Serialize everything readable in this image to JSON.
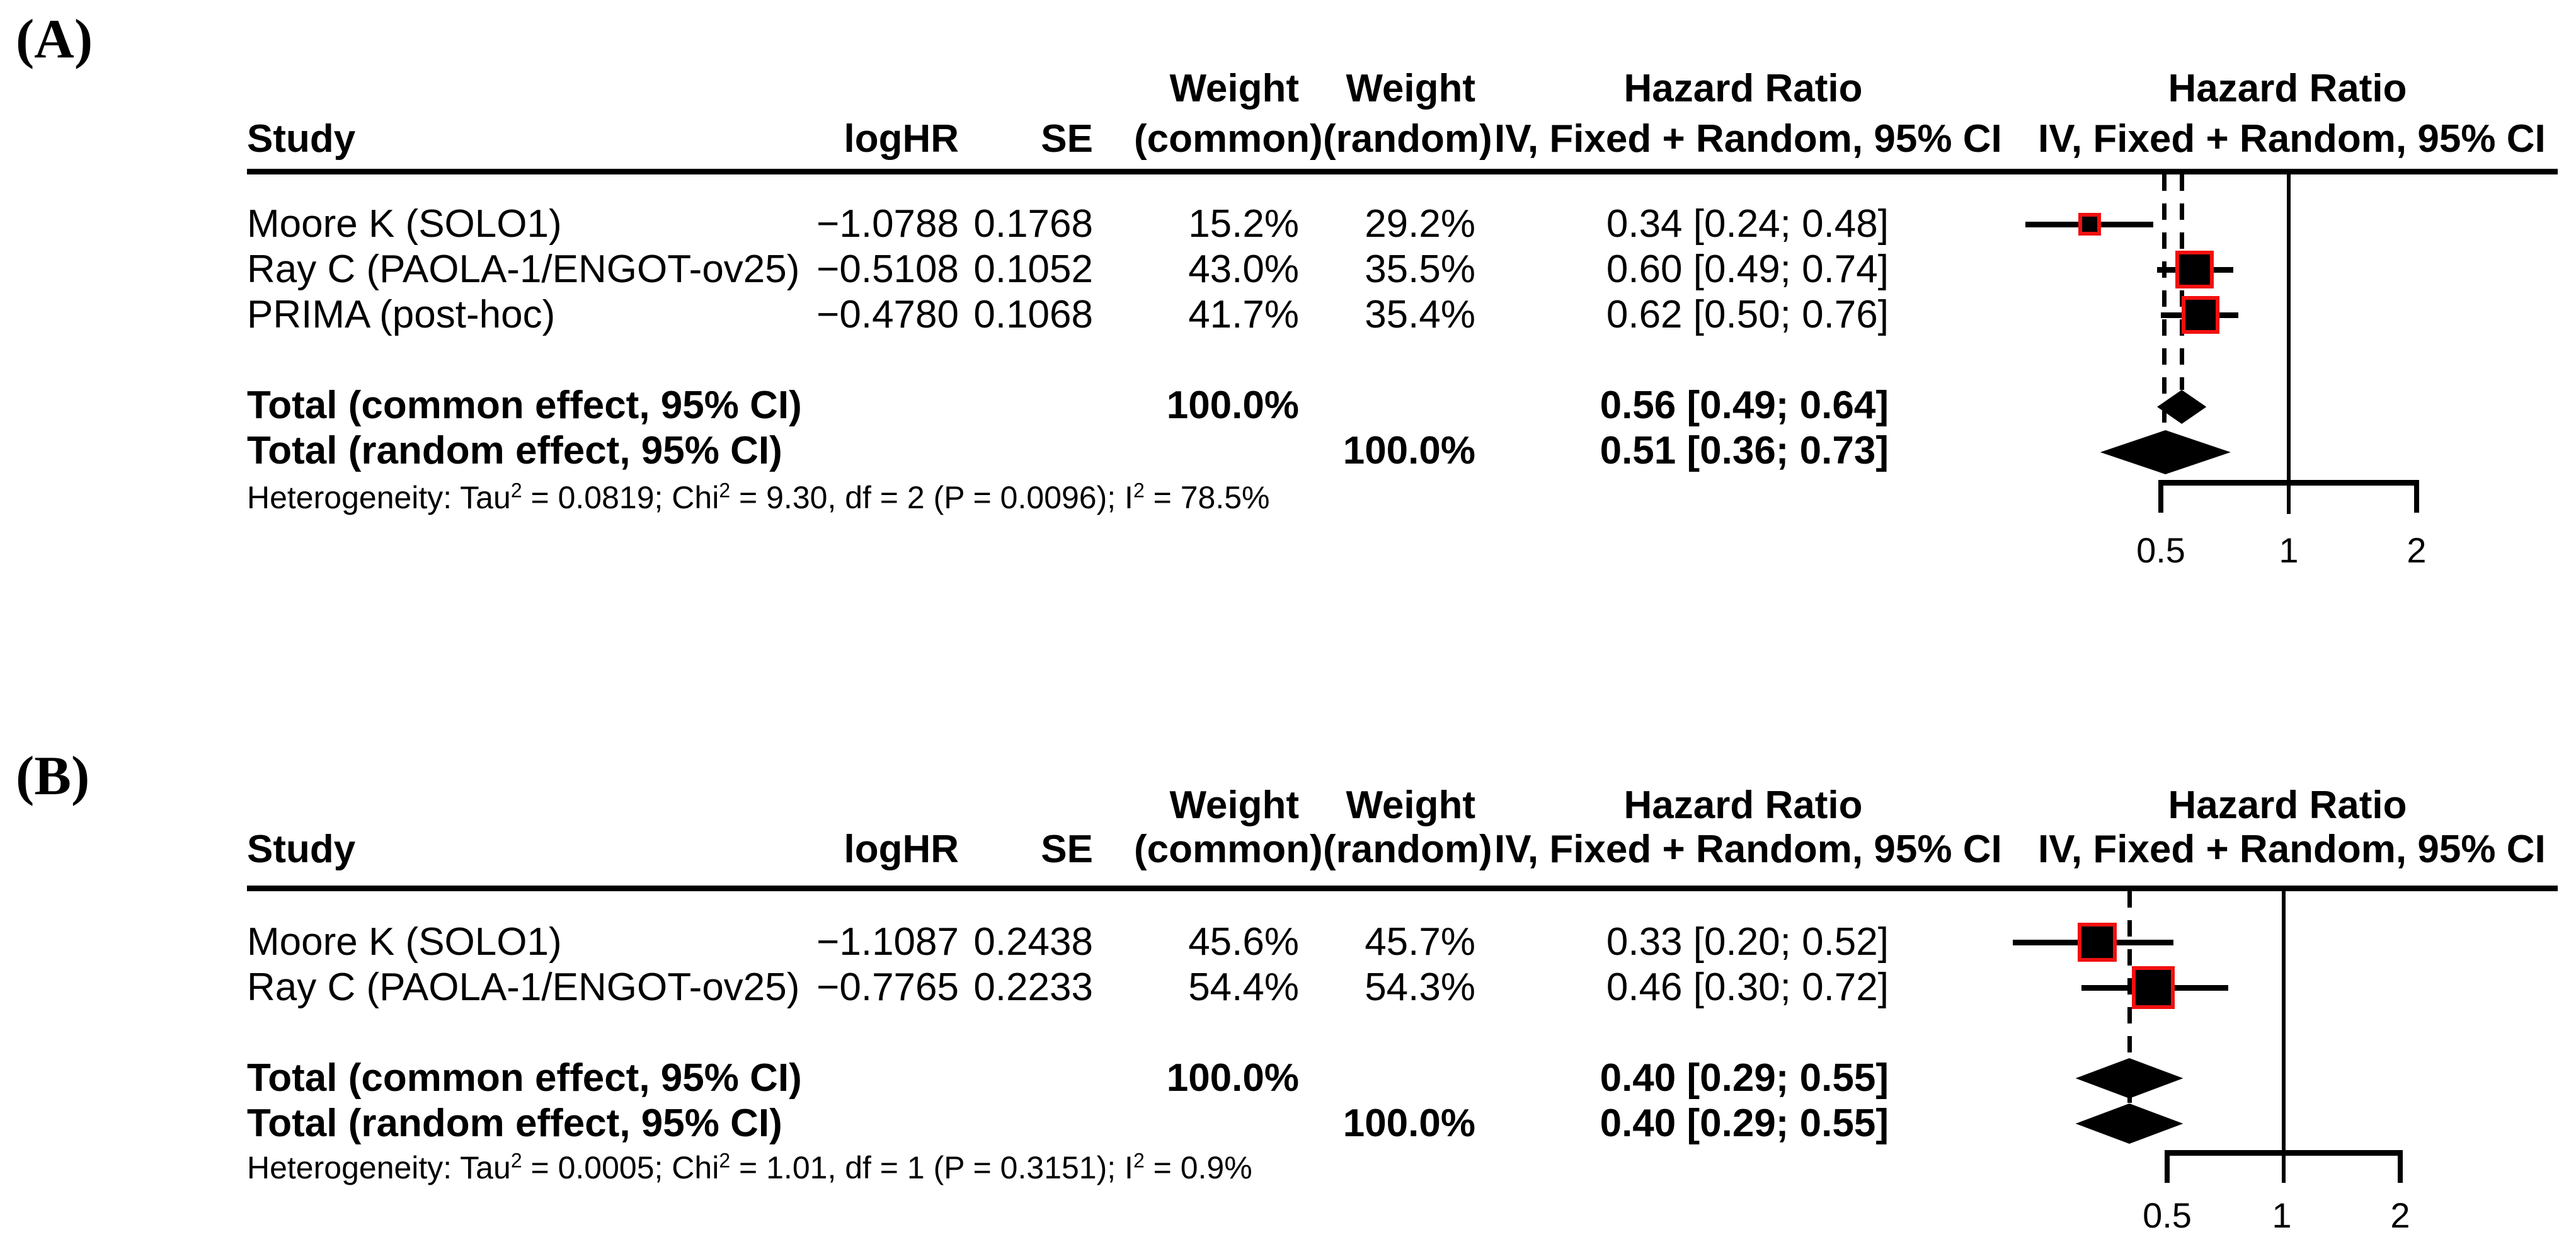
{
  "colors": {
    "background": "#ffffff",
    "text": "#000000",
    "marker_fill": "#000000",
    "marker_border": "#f21010"
  },
  "figure": {
    "panels": [
      {
        "label": "(A)",
        "header": {
          "study": "Study",
          "loghr": "logHR",
          "se": "SE",
          "weight_title": "Weight",
          "weight_common": "(common)",
          "weight_random": "(random)",
          "hr_title": "Hazard Ratio",
          "hr_subtitle": "IV, Fixed + Random, 95% CI"
        },
        "rows": [
          {
            "study": "Moore K (SOLO1)",
            "loghr": "−1.0788",
            "se": "0.1768",
            "w_common": "15.2%",
            "w_random": "29.2%",
            "hr_text": "0.34 [0.24; 0.48]"
          },
          {
            "study": "Ray C (PAOLA-1/ENGOT-ov25)",
            "loghr": "−0.5108",
            "se": "0.1052",
            "w_common": "43.0%",
            "w_random": "35.5%",
            "hr_text": "0.60 [0.49; 0.74]"
          },
          {
            "study": "PRIMA (post-hoc)",
            "loghr": "−0.4780",
            "se": "0.1068",
            "w_common": "41.7%",
            "w_random": "35.4%",
            "hr_text": "0.62 [0.50; 0.76]"
          }
        ],
        "totals": [
          {
            "label": "Total (common effect, 95% CI)",
            "w_common": "100.0%",
            "w_random": "",
            "hr_text": "0.56 [0.49; 0.64]"
          },
          {
            "label": "Total (random effect, 95% CI)",
            "w_common": "",
            "w_random": "100.0%",
            "hr_text": "0.51 [0.36; 0.73]"
          }
        ],
        "heterogeneity_segments": [
          {
            "t": "Heterogeneity: Tau"
          },
          {
            "sup": "2"
          },
          {
            "t": " = 0.0819; Chi"
          },
          {
            "sup": "2"
          },
          {
            "t": " = 9.30, df = 2 (P = 0.0096); I"
          },
          {
            "sup": "2"
          },
          {
            "t": " = 78.5%"
          }
        ],
        "axis_ticks": [
          "0.5",
          "1",
          "2"
        ],
        "forest": {
          "studies": [
            {
              "hr": 0.34,
              "lo": 0.24,
              "hi": 0.48,
              "weight": 15.2
            },
            {
              "hr": 0.6,
              "lo": 0.49,
              "hi": 0.74,
              "weight": 43.0
            },
            {
              "hr": 0.62,
              "lo": 0.5,
              "hi": 0.76,
              "weight": 41.7
            }
          ],
          "pooled_common": {
            "hr": 0.56,
            "lo": 0.49,
            "hi": 0.64
          },
          "pooled_random": {
            "hr": 0.51,
            "lo": 0.36,
            "hi": 0.73
          }
        }
      },
      {
        "label": "(B)",
        "header": {
          "study": "Study",
          "loghr": "logHR",
          "se": "SE",
          "weight_title": "Weight",
          "weight_common": "(common)",
          "weight_random": "(random)",
          "hr_title": "Hazard Ratio",
          "hr_subtitle": "IV, Fixed + Random, 95% CI"
        },
        "rows": [
          {
            "study": "Moore K (SOLO1)",
            "loghr": "−1.1087",
            "se": "0.2438",
            "w_common": "45.6%",
            "w_random": "45.7%",
            "hr_text": "0.33 [0.20; 0.52]"
          },
          {
            "study": "Ray C (PAOLA-1/ENGOT-ov25)",
            "loghr": "−0.7765",
            "se": "0.2233",
            "w_common": "54.4%",
            "w_random": "54.3%",
            "hr_text": "0.46 [0.30; 0.72]"
          }
        ],
        "totals": [
          {
            "label": "Total (common effect, 95% CI)",
            "w_common": "100.0%",
            "w_random": "",
            "hr_text": "0.40 [0.29; 0.55]"
          },
          {
            "label": "Total (random effect, 95% CI)",
            "w_common": "",
            "w_random": "100.0%",
            "hr_text": "0.40 [0.29; 0.55]"
          }
        ],
        "heterogeneity_segments": [
          {
            "t": "Heterogeneity: Tau"
          },
          {
            "sup": "2"
          },
          {
            "t": " = 0.0005; Chi"
          },
          {
            "sup": "2"
          },
          {
            "t": " = 1.01, df = 1 (P = 0.3151); I"
          },
          {
            "sup": "2"
          },
          {
            "t": " = 0.9%"
          }
        ],
        "axis_ticks": [
          "0.5",
          "1",
          "2"
        ],
        "forest": {
          "studies": [
            {
              "hr": 0.33,
              "lo": 0.2,
              "hi": 0.52,
              "weight": 45.6
            },
            {
              "hr": 0.46,
              "lo": 0.3,
              "hi": 0.72,
              "weight": 54.4
            }
          ],
          "pooled_common": {
            "hr": 0.4,
            "lo": 0.29,
            "hi": 0.55
          },
          "pooled_random": {
            "hr": 0.4,
            "lo": 0.29,
            "hi": 0.55
          }
        }
      }
    ]
  },
  "chart_data": [
    {
      "type": "table",
      "title": "(A)",
      "columns": [
        "Study",
        "logHR",
        "SE",
        "Weight (common)",
        "Weight (random)",
        "Hazard Ratio IV, Fixed + Random, 95% CI"
      ],
      "rows": [
        [
          "Moore K (SOLO1)",
          -1.0788,
          0.1768,
          "15.2%",
          "29.2%",
          "0.34 [0.24; 0.48]"
        ],
        [
          "Ray C (PAOLA-1/ENGOT-ov25)",
          -0.5108,
          0.1052,
          "43.0%",
          "35.5%",
          "0.60 [0.49; 0.74]"
        ],
        [
          "PRIMA (post-hoc)",
          -0.478,
          0.1068,
          "41.7%",
          "35.4%",
          "0.62 [0.50; 0.76]"
        ]
      ],
      "points": [
        {
          "study": "Moore K (SOLO1)",
          "hr": 0.34,
          "ci": [
            0.24,
            0.48
          ]
        },
        {
          "study": "Ray C (PAOLA-1/ENGOT-ov25)",
          "hr": 0.6,
          "ci": [
            0.49,
            0.74
          ]
        },
        {
          "study": "PRIMA (post-hoc)",
          "hr": 0.62,
          "ci": [
            0.5,
            0.76
          ]
        }
      ],
      "pooled": [
        {
          "label": "Total (common effect, 95% CI)",
          "weight": "100.0%",
          "hr": 0.56,
          "ci": [
            0.49,
            0.64
          ]
        },
        {
          "label": "Total (random effect, 95% CI)",
          "weight": "100.0%",
          "hr": 0.51,
          "ci": [
            0.36,
            0.73
          ]
        }
      ],
      "heterogeneity": "Heterogeneity: Tau2 = 0.0819; Chi2 = 9.30, df = 2 (P = 0.0096); I2 = 78.5%",
      "x_axis": {
        "scale": "log",
        "ticks": [
          0.5,
          1,
          2
        ],
        "reference_line": 1
      }
    },
    {
      "type": "table",
      "title": "(B)",
      "columns": [
        "Study",
        "logHR",
        "SE",
        "Weight (common)",
        "Weight (random)",
        "Hazard Ratio IV, Fixed + Random, 95% CI"
      ],
      "rows": [
        [
          "Moore K (SOLO1)",
          -1.1087,
          0.2438,
          "45.6%",
          "45.7%",
          "0.33 [0.20; 0.52]"
        ],
        [
          "Ray C (PAOLA-1/ENGOT-ov25)",
          -0.7765,
          0.2233,
          "54.4%",
          "54.3%",
          "0.46 [0.30; 0.72]"
        ]
      ],
      "points": [
        {
          "study": "Moore K (SOLO1)",
          "hr": 0.33,
          "ci": [
            0.2,
            0.52
          ]
        },
        {
          "study": "Ray C (PAOLA-1/ENGOT-ov25)",
          "hr": 0.46,
          "ci": [
            0.3,
            0.72
          ]
        }
      ],
      "pooled": [
        {
          "label": "Total (common effect, 95% CI)",
          "weight": "100.0%",
          "hr": 0.4,
          "ci": [
            0.29,
            0.55
          ]
        },
        {
          "label": "Total (random effect, 95% CI)",
          "weight": "100.0%",
          "hr": 0.4,
          "ci": [
            0.29,
            0.55
          ]
        }
      ],
      "heterogeneity": "Heterogeneity: Tau2 = 0.0005; Chi2 = 1.01, df = 1 (P = 0.3151); I2 = 0.9%",
      "x_axis": {
        "scale": "log",
        "ticks": [
          0.5,
          1,
          2
        ],
        "reference_line": 1
      }
    }
  ]
}
